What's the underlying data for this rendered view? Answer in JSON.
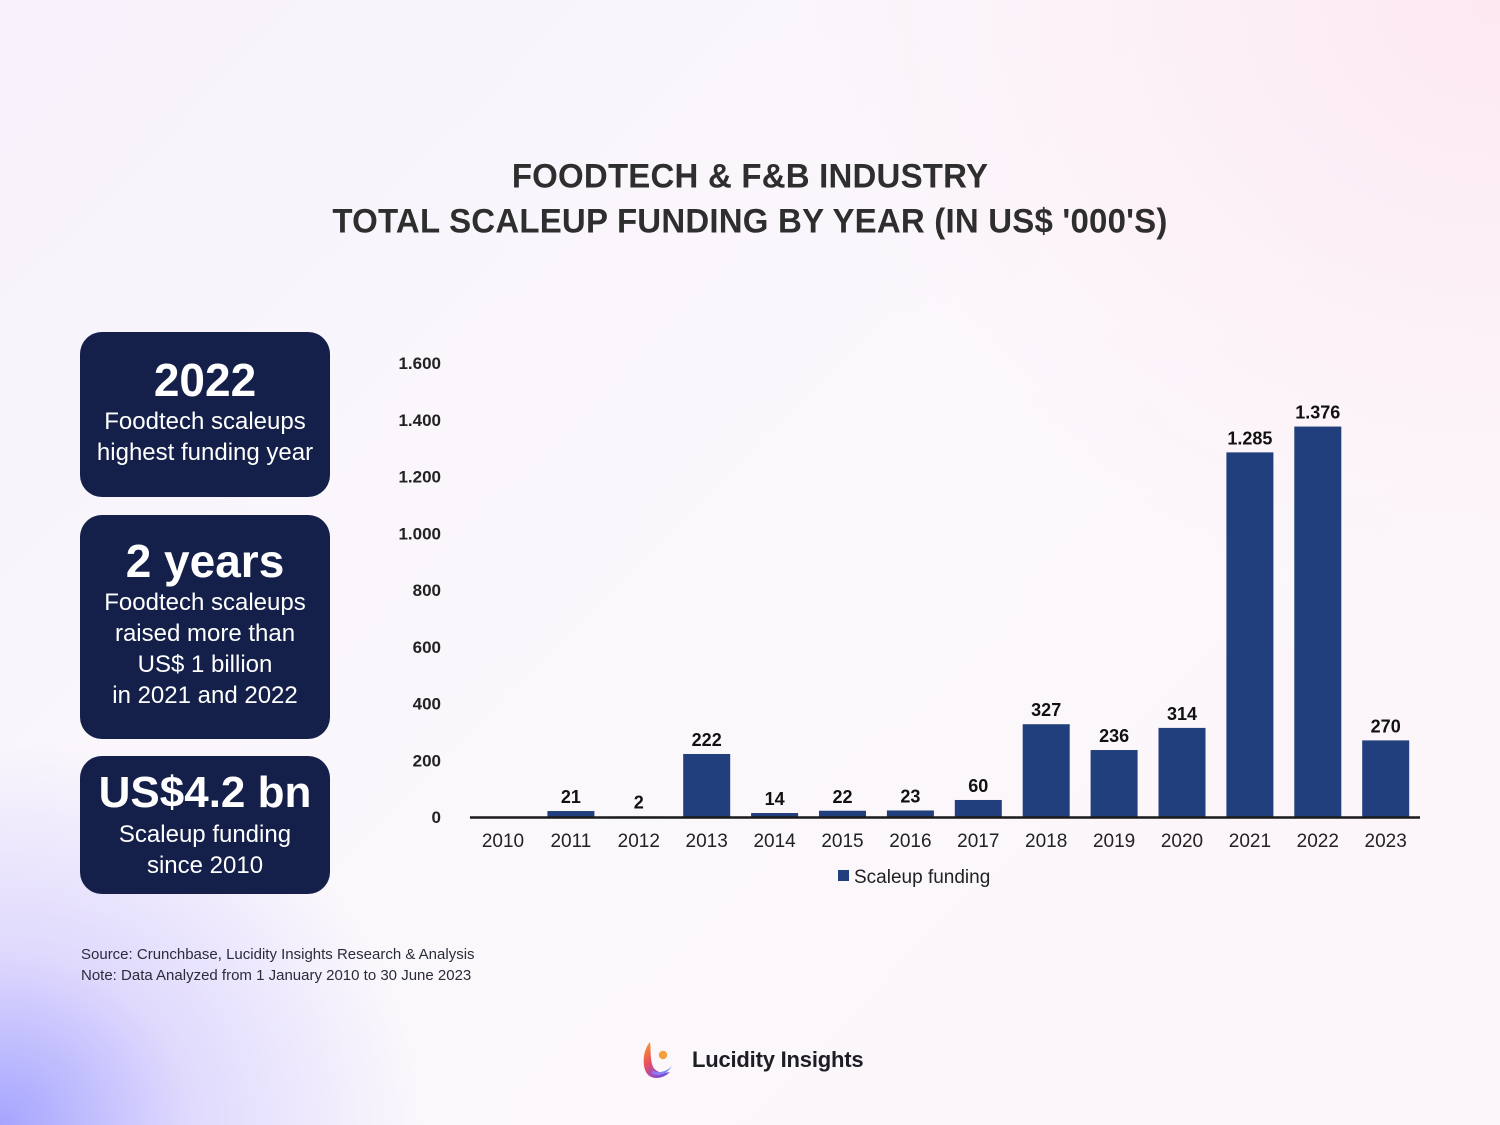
{
  "title": {
    "line1": "FOODTECH & F&B INDUSTRY",
    "line2": "TOTAL SCALEUP FUNDING BY YEAR (IN US$ '000'S)"
  },
  "cards": [
    {
      "headline": "2022",
      "lines": [
        "Foodtech scaleups",
        "highest funding year"
      ]
    },
    {
      "headline": "2 years",
      "lines": [
        "Foodtech scaleups",
        "raised more than",
        "US$ 1 billion",
        "in 2021 and 2022"
      ]
    },
    {
      "headline": "US$4.2 bn",
      "lines": [
        "Scaleup funding",
        "since 2010"
      ]
    }
  ],
  "footer": {
    "source": "Source: Crunchbase, Lucidity Insights Research & Analysis",
    "note": "Note: Data Analyzed from 1 January 2010 to 30 June 2023"
  },
  "brand": {
    "name": "Lucidity Insights",
    "logo_icon": "lucidity-logo-icon"
  },
  "colors": {
    "bar": "#213f7c",
    "card_bg": "#14204a",
    "axis": "#1a1a1a"
  },
  "chart_data": {
    "type": "bar",
    "title": "FOODTECH & F&B INDUSTRY TOTAL SCALEUP FUNDING BY YEAR (IN US$ '000'S)",
    "xlabel": "",
    "ylabel": "",
    "categories": [
      "2010",
      "2011",
      "2012",
      "2013",
      "2014",
      "2015",
      "2016",
      "2017",
      "2018",
      "2019",
      "2020",
      "2021",
      "2022",
      "2023"
    ],
    "series": [
      {
        "name": "Scaleup funding",
        "values": [
          0,
          21,
          2,
          222,
          14,
          22,
          23,
          60,
          327,
          236,
          314,
          1285,
          1376,
          270
        ],
        "labels": [
          "",
          "21",
          "2",
          "222",
          "14",
          "22",
          "23",
          "60",
          "327",
          "236",
          "314",
          "1.285",
          "1.376",
          "270"
        ]
      }
    ],
    "ylim": [
      0,
      1600
    ],
    "yticks": [
      0,
      200,
      400,
      600,
      800,
      1000,
      1200,
      1400,
      1600
    ],
    "ytick_labels": [
      "0",
      "200",
      "400",
      "600",
      "800",
      "1.000",
      "1.200",
      "1.400",
      "1.600"
    ],
    "grid": false,
    "legend": {
      "position": "bottom-center",
      "entries": [
        "Scaleup funding"
      ]
    }
  }
}
